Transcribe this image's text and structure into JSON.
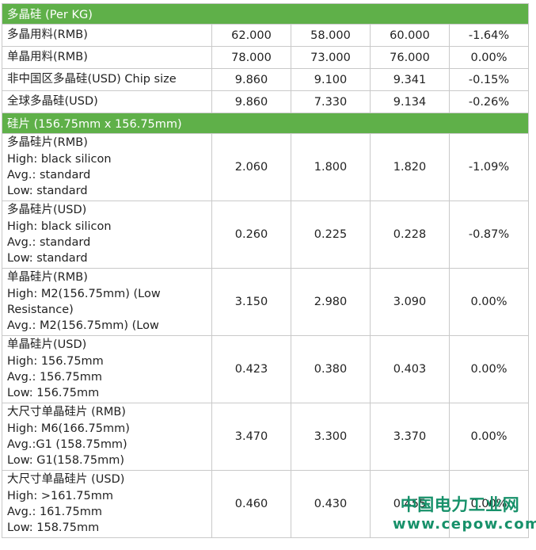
{
  "sections": [
    {
      "title": "多晶硅 (Per KG)",
      "rows": [
        {
          "lines": [
            "多晶用料(RMB)"
          ],
          "high": "62.000",
          "low": "58.000",
          "avg": "60.000",
          "change": "-1.64%"
        },
        {
          "lines": [
            "单晶用料(RMB)"
          ],
          "high": "78.000",
          "low": "73.000",
          "avg": "76.000",
          "change": "0.00%"
        },
        {
          "lines": [
            "非中国区多晶硅(USD) Chip size"
          ],
          "high": "9.860",
          "low": "9.100",
          "avg": "9.341",
          "change": "-0.15%"
        },
        {
          "lines": [
            "全球多晶硅(USD)"
          ],
          "high": "9.860",
          "low": "7.330",
          "avg": "9.134",
          "change": "-0.26%"
        }
      ]
    },
    {
      "title": "硅片 (156.75mm x 156.75mm)",
      "rows": [
        {
          "lines": [
            "多晶硅片(RMB)",
            "High: black silicon",
            "Avg.: standard",
            "Low: standard"
          ],
          "high": "2.060",
          "low": "1.800",
          "avg": "1.820",
          "change": "-1.09%"
        },
        {
          "lines": [
            "多晶硅片(USD)",
            "High: black silicon",
            "Avg.: standard",
            "Low: standard"
          ],
          "high": "0.260",
          "low": "0.225",
          "avg": "0.228",
          "change": "-0.87%"
        },
        {
          "lines": [
            "单晶硅片(RMB)",
            "High: M2(156.75mm) (Low",
            "Resistance)",
            "Avg.: M2(156.75mm) (Low"
          ],
          "high": "3.150",
          "low": "2.980",
          "avg": "3.090",
          "change": "0.00%"
        },
        {
          "lines": [
            "单晶硅片(USD)",
            "High: 156.75mm",
            "Avg.: 156.75mm",
            "Low: 156.75mm"
          ],
          "high": "0.423",
          "low": "0.380",
          "avg": "0.403",
          "change": "0.00%"
        },
        {
          "lines": [
            "大尺寸单晶硅片 (RMB)",
            "High: M6(166.75mm)",
            "Avg.:G1 (158.75mm)",
            "Low: G1(158.75mm)"
          ],
          "high": "3.470",
          "low": "3.300",
          "avg": "3.370",
          "change": "0.00%"
        },
        {
          "lines": [
            "大尺寸单晶硅片 (USD)",
            "High: >161.75mm",
            "Avg.: 161.75mm",
            "Low: 158.75mm"
          ],
          "high": "0.460",
          "low": "0.430",
          "avg": "0.455",
          "change": "0.00%"
        }
      ]
    }
  ],
  "watermark": {
    "name": "中国电力工业网",
    "url": "www.cepow.com"
  },
  "colors": {
    "section_header_bg": "#5fb049",
    "grid": "#c9c9c9",
    "watermark": "#17916a"
  }
}
